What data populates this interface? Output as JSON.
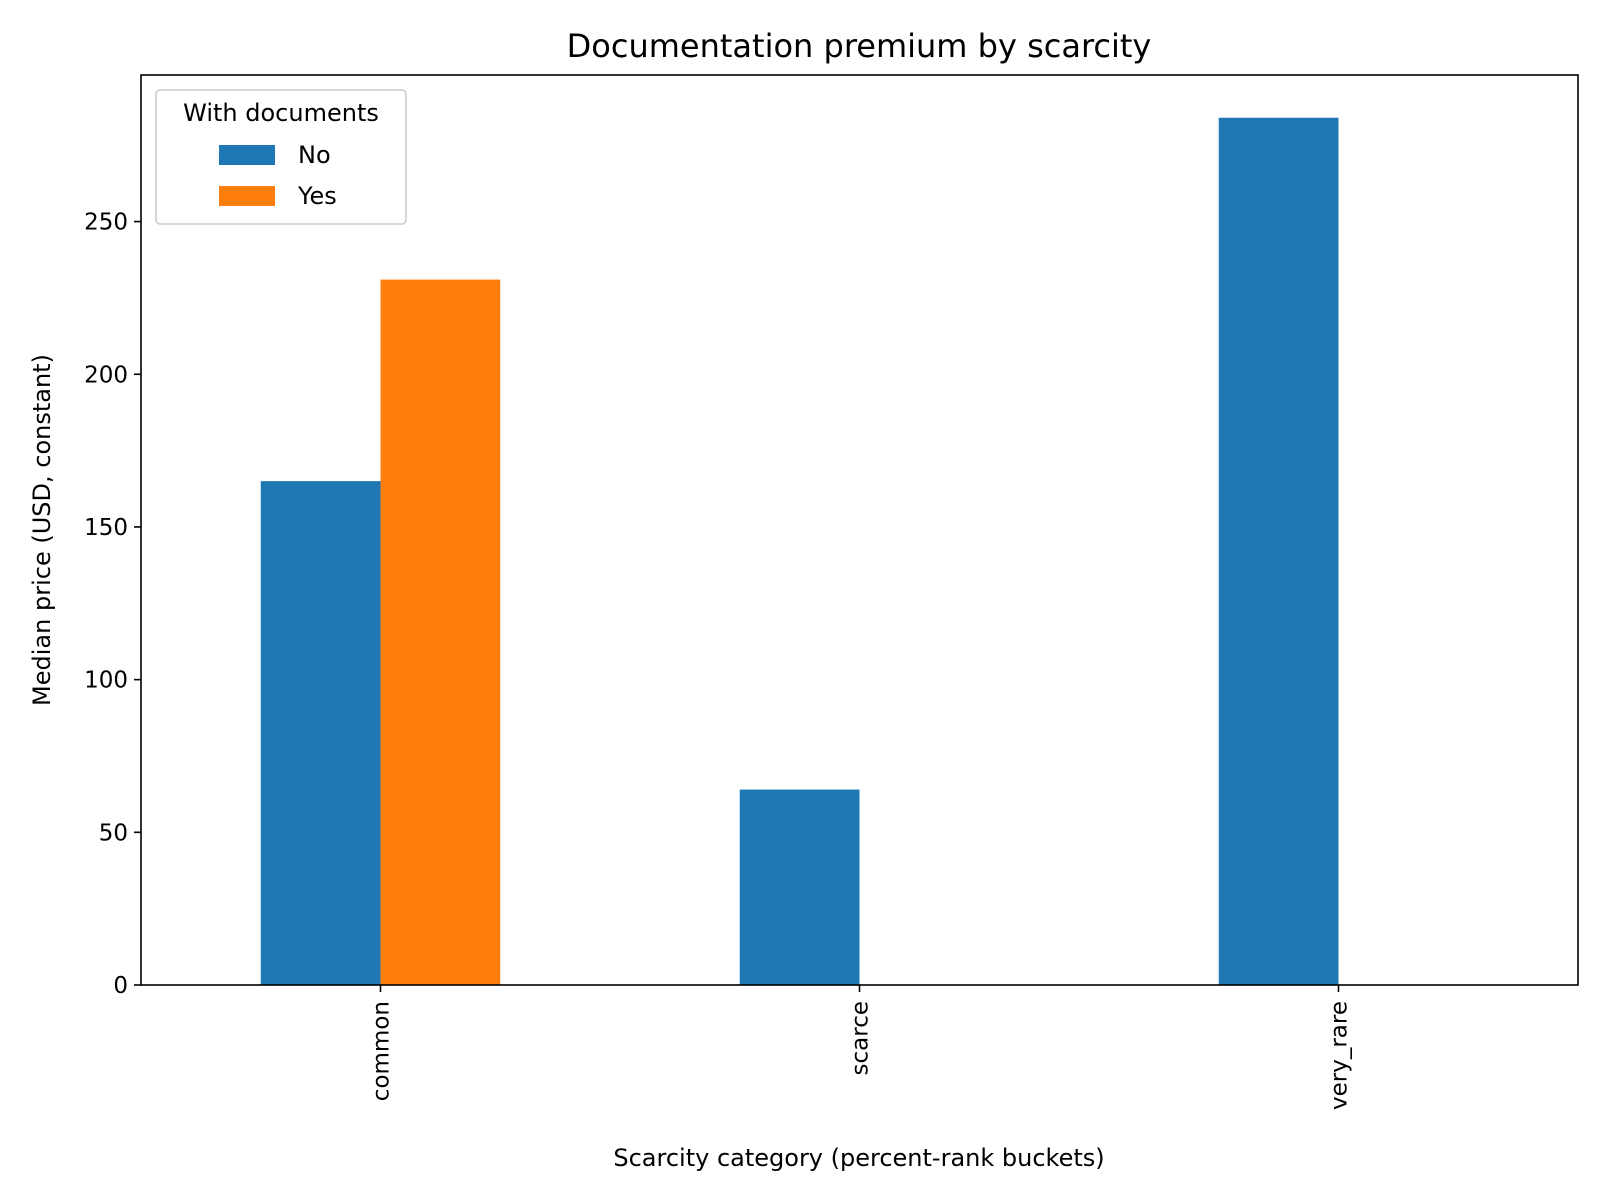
{
  "chart_data": {
    "type": "bar",
    "title": "Documentation premium by scarcity",
    "xlabel": "Scarcity category (percent-rank buckets)",
    "ylabel": "Median price (USD, constant)",
    "categories": [
      "common",
      "scarce",
      "very_rare"
    ],
    "series": [
      {
        "name": "No",
        "color": "#1f77b4",
        "values": [
          165,
          64,
          284
        ]
      },
      {
        "name": "Yes",
        "color": "#ff7f0e",
        "values": [
          231,
          null,
          null
        ]
      }
    ],
    "ylim": [
      0,
      298
    ],
    "yticks": [
      0,
      50,
      100,
      150,
      200,
      250
    ],
    "legend": {
      "title": "With documents",
      "placement": "top-left"
    },
    "grid": false
  }
}
